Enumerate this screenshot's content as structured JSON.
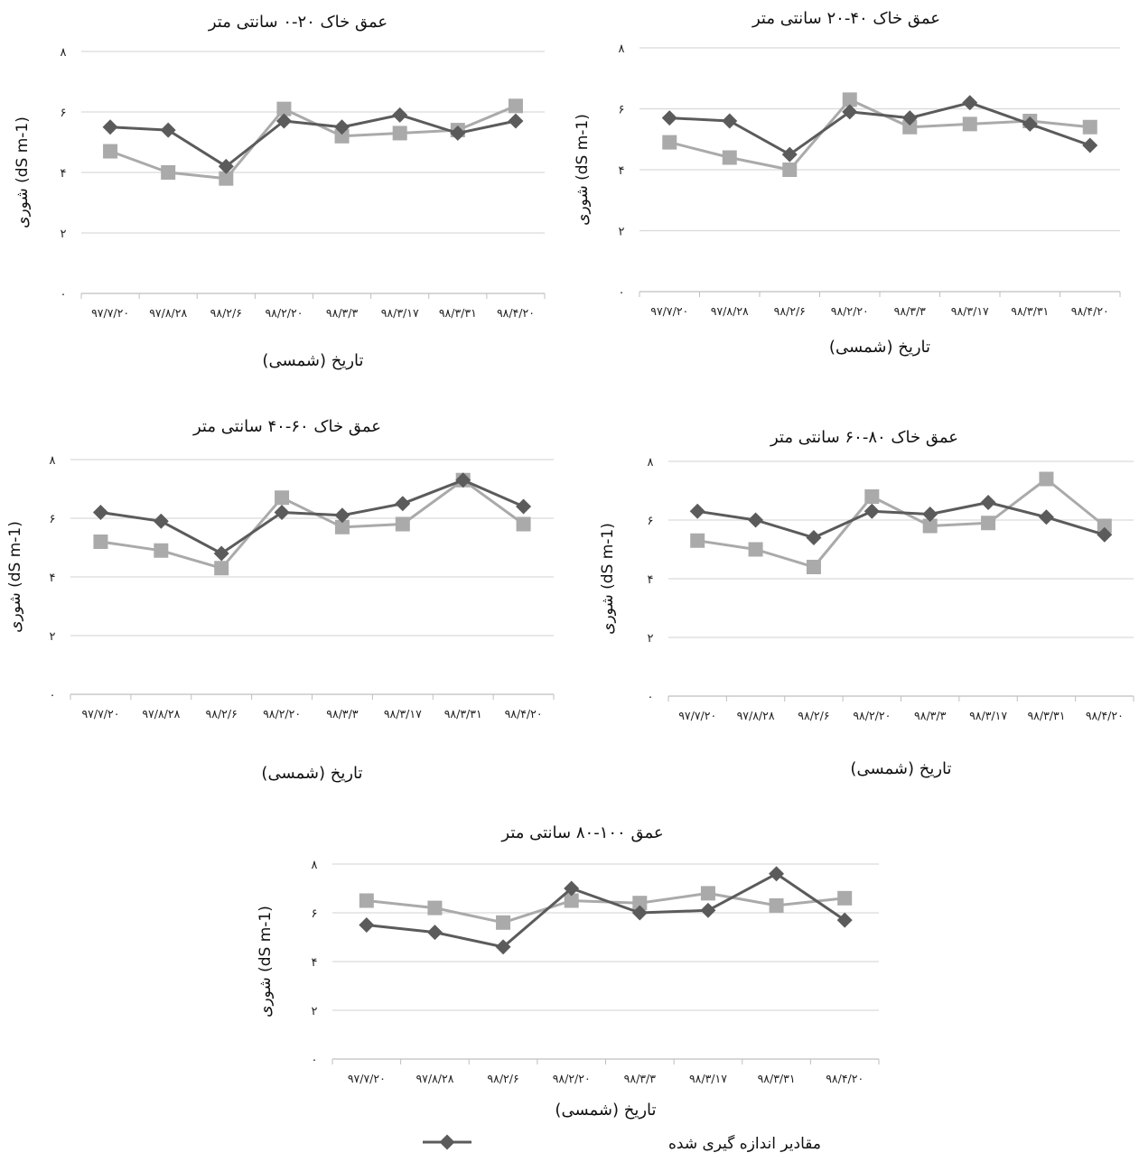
{
  "colors": {
    "measured": "#5b5b5b",
    "simulated": "#aaaaaa",
    "grid": "#d9d9d9",
    "axis": "#bfbfbf"
  },
  "legend": {
    "measured_label": "مقادیر اندازه گیری شده"
  },
  "chart_data": [
    {
      "type": "line",
      "title": "عمق خاک ۲۰-۰ سانتی متر",
      "xlabel": "تاریخ (شمسی)",
      "ylabel": "شوری (dS m-1)",
      "ylim": [
        0,
        8
      ],
      "yticks": [
        "۰",
        "۲",
        "۴",
        "۶",
        "۸"
      ],
      "categories": [
        "۹۷/۷/۲۰",
        "۹۷/۸/۲۸",
        "۹۸/۲/۶",
        "۹۸/۲/۲۰",
        "۹۸/۳/۳",
        "۹۸/۳/۱۷",
        "۹۸/۳/۳۱",
        "۹۸/۴/۲۰"
      ],
      "grid": true,
      "series": [
        {
          "name": "مقادیر اندازه گیری شده",
          "marker": "diamond",
          "values": [
            5.5,
            5.4,
            4.2,
            5.7,
            5.5,
            5.9,
            5.3,
            5.7
          ]
        },
        {
          "marker": "square",
          "values": [
            4.7,
            4.0,
            3.8,
            6.1,
            5.2,
            5.3,
            5.4,
            6.2
          ]
        }
      ]
    },
    {
      "type": "line",
      "title": "عمق خاک ۴۰-۲۰ سانتی متر",
      "xlabel": "تاریخ (شمسی)",
      "ylabel": "شوری (dS m-1)",
      "ylim": [
        0,
        8
      ],
      "yticks": [
        "۰",
        "۲",
        "۴",
        "۶",
        "۸"
      ],
      "categories": [
        "۹۷/۷/۲۰",
        "۹۷/۸/۲۸",
        "۹۸/۲/۶",
        "۹۸/۲/۲۰",
        "۹۸/۳/۳",
        "۹۸/۳/۱۷",
        "۹۸/۳/۳۱",
        "۹۸/۴/۲۰"
      ],
      "grid": true,
      "series": [
        {
          "name": "مقادیر اندازه گیری شده",
          "marker": "diamond",
          "values": [
            5.7,
            5.6,
            4.5,
            5.9,
            5.7,
            6.2,
            5.5,
            4.8
          ]
        },
        {
          "marker": "square",
          "values": [
            4.9,
            4.4,
            4.0,
            6.3,
            5.4,
            5.5,
            5.6,
            5.4
          ]
        }
      ]
    },
    {
      "type": "line",
      "title": "عمق خاک ۶۰-۴۰ سانتی متر",
      "xlabel": "تاریخ (شمسی)",
      "ylabel": "شوری (dS m-1)",
      "ylim": [
        0,
        8
      ],
      "yticks": [
        "۰",
        "۲",
        "۴",
        "۶",
        "۸"
      ],
      "categories": [
        "۹۷/۷/۲۰",
        "۹۷/۸/۲۸",
        "۹۸/۲/۶",
        "۹۸/۲/۲۰",
        "۹۸/۳/۳",
        "۹۸/۳/۱۷",
        "۹۸/۳/۳۱",
        "۹۸/۴/۲۰"
      ],
      "grid": true,
      "series": [
        {
          "name": "مقادیر اندازه گیری شده",
          "marker": "diamond",
          "values": [
            6.2,
            5.9,
            4.8,
            6.2,
            6.1,
            6.5,
            7.3,
            6.4
          ]
        },
        {
          "marker": "square",
          "values": [
            5.2,
            4.9,
            4.3,
            6.7,
            5.7,
            5.8,
            7.3,
            5.8
          ]
        }
      ]
    },
    {
      "type": "line",
      "title": "عمق خاک ۸۰-۶۰ سانتی متر",
      "xlabel": "تاریخ (شمسی)",
      "ylabel": "شوری (dS m-1)",
      "ylim": [
        0,
        8
      ],
      "yticks": [
        "۰",
        "۲",
        "۴",
        "۶",
        "۸"
      ],
      "categories": [
        "۹۷/۷/۲۰",
        "۹۷/۸/۲۸",
        "۹۸/۲/۶",
        "۹۸/۲/۲۰",
        "۹۸/۳/۳",
        "۹۸/۳/۱۷",
        "۹۸/۳/۳۱",
        "۹۸/۴/۲۰"
      ],
      "grid": true,
      "series": [
        {
          "name": "مقادیر اندازه گیری شده",
          "marker": "diamond",
          "values": [
            6.3,
            6.0,
            5.4,
            6.3,
            6.2,
            6.6,
            6.1,
            5.5
          ]
        },
        {
          "marker": "square",
          "values": [
            5.3,
            5.0,
            4.4,
            6.8,
            5.8,
            5.9,
            7.4,
            5.8
          ]
        }
      ]
    },
    {
      "type": "line",
      "title": "عمق ۱۰۰-۸۰ سانتی متر",
      "xlabel": "تاریخ (شمسی)",
      "ylabel": "شوری (dS m-1)",
      "ylim": [
        0,
        8
      ],
      "yticks": [
        "۰",
        "۲",
        "۴",
        "۶",
        "۸"
      ],
      "categories": [
        "۹۷/۷/۲۰",
        "۹۷/۸/۲۸",
        "۹۸/۲/۶",
        "۹۸/۲/۲۰",
        "۹۸/۳/۳",
        "۹۸/۳/۱۷",
        "۹۸/۳/۳۱",
        "۹۸/۴/۲۰"
      ],
      "grid": true,
      "series": [
        {
          "name": "مقادیر اندازه گیری شده",
          "marker": "diamond",
          "values": [
            5.5,
            5.2,
            4.6,
            7.0,
            6.0,
            6.1,
            7.6,
            5.7
          ]
        },
        {
          "marker": "square",
          "values": [
            6.5,
            6.2,
            5.6,
            6.5,
            6.4,
            6.8,
            6.3,
            6.6
          ]
        }
      ]
    }
  ]
}
